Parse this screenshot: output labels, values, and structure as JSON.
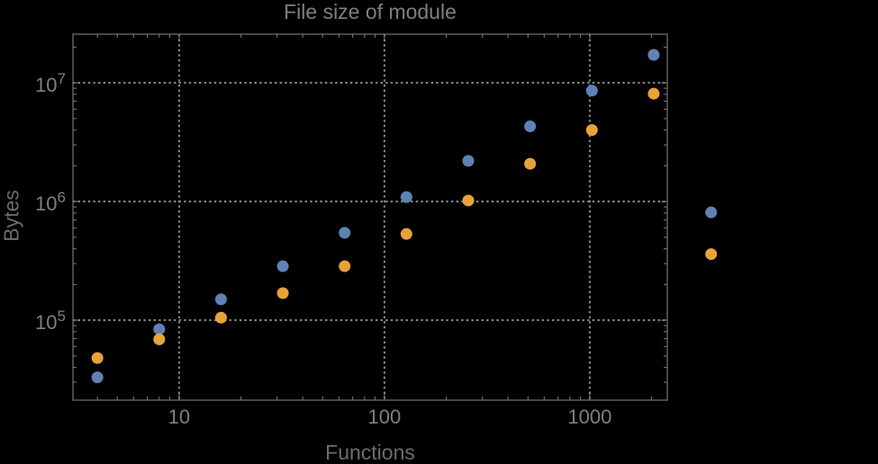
{
  "page": {
    "background": "#000000"
  },
  "chart_data": {
    "type": "scatter",
    "title": "File size of module",
    "xlabel": "Functions",
    "ylabel": "Bytes",
    "x_scale": "log10",
    "y_scale": "log10",
    "xlim": [
      3.04,
      2385
    ],
    "ylim": [
      21200,
      25700000
    ],
    "grid": "dotted lines at decade ticks, both axes",
    "legend": "none",
    "x_ticks": {
      "major": [
        10,
        100,
        1000
      ],
      "labels": [
        "10",
        "100",
        "1000"
      ],
      "log_minor": true
    },
    "y_ticks": {
      "major": [
        100000,
        1000000,
        10000000
      ],
      "labels": [
        "10^5",
        "10^6",
        "10^7"
      ],
      "log_minor": true
    },
    "series": [
      {
        "name": "blue",
        "color": "#5E82B5",
        "marker": "circle",
        "points": [
          [
            4,
            33000
          ],
          [
            8,
            84000
          ],
          [
            16,
            150000
          ],
          [
            32,
            285000
          ],
          [
            64,
            545000
          ],
          [
            128,
            1090000
          ],
          [
            256,
            2200000
          ],
          [
            512,
            4300000
          ],
          [
            1024,
            8600000
          ],
          [
            2048,
            17200000
          ],
          [
            3900,
            810000
          ]
        ]
      },
      {
        "name": "orange",
        "color": "#E7A33A",
        "marker": "circle",
        "points": [
          [
            4,
            48000
          ],
          [
            8,
            69000
          ],
          [
            16,
            105000
          ],
          [
            32,
            169000
          ],
          [
            64,
            285000
          ],
          [
            128,
            533000
          ],
          [
            256,
            1020000
          ],
          [
            512,
            2080000
          ],
          [
            1024,
            4000000
          ],
          [
            2048,
            8100000
          ],
          [
            3900,
            360000
          ]
        ]
      }
    ],
    "colors": {
      "background": "#000000",
      "frame": "#747474",
      "grid": "#868686",
      "tick_label": "#7F7F7F",
      "title": "#7F7F7F",
      "axis_label": "#6C6C6C",
      "series_blue": "#5E82B5",
      "series_orange": "#E7A33A"
    },
    "note_points_outside_frame": "the two points at x=3900 are drawn to the right of the plot frame"
  }
}
